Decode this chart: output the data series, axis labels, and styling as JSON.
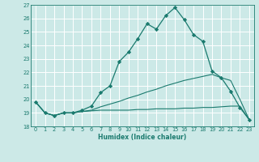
{
  "title": "",
  "xlabel": "Humidex (Indice chaleur)",
  "ylabel": "",
  "x_values": [
    0,
    1,
    2,
    3,
    4,
    5,
    6,
    7,
    8,
    9,
    10,
    11,
    12,
    13,
    14,
    15,
    16,
    17,
    18,
    19,
    20,
    21,
    22,
    23
  ],
  "line1_y": [
    19.8,
    19.0,
    18.8,
    19.0,
    19.0,
    19.2,
    19.5,
    20.5,
    21.0,
    22.8,
    23.5,
    24.5,
    25.6,
    25.2,
    26.2,
    26.8,
    25.9,
    24.8,
    24.3,
    22.1,
    21.6,
    20.6,
    19.4,
    18.5
  ],
  "line2_y": [
    19.8,
    19.0,
    18.8,
    19.0,
    19.0,
    19.1,
    19.15,
    19.2,
    19.2,
    19.2,
    19.2,
    19.25,
    19.25,
    19.3,
    19.3,
    19.3,
    19.35,
    19.35,
    19.4,
    19.4,
    19.45,
    19.5,
    19.5,
    18.5
  ],
  "line3_y": [
    19.8,
    19.0,
    18.8,
    19.0,
    19.0,
    19.1,
    19.2,
    19.45,
    19.65,
    19.85,
    20.1,
    20.3,
    20.55,
    20.75,
    21.0,
    21.2,
    21.4,
    21.55,
    21.7,
    21.85,
    21.6,
    21.4,
    20.0,
    18.5
  ],
  "ylim": [
    18,
    27
  ],
  "xlim": [
    -0.5,
    23.5
  ],
  "yticks": [
    18,
    19,
    20,
    21,
    22,
    23,
    24,
    25,
    26,
    27
  ],
  "xticks": [
    0,
    1,
    2,
    3,
    4,
    5,
    6,
    7,
    8,
    9,
    10,
    11,
    12,
    13,
    14,
    15,
    16,
    17,
    18,
    19,
    20,
    21,
    22,
    23
  ],
  "line_color": "#1a7a6e",
  "bg_color": "#cce9e7",
  "grid_color": "#ffffff",
  "axes_color": "#1a7a6e",
  "label_fontsize": 5.5,
  "tick_fontsize": 4.8
}
